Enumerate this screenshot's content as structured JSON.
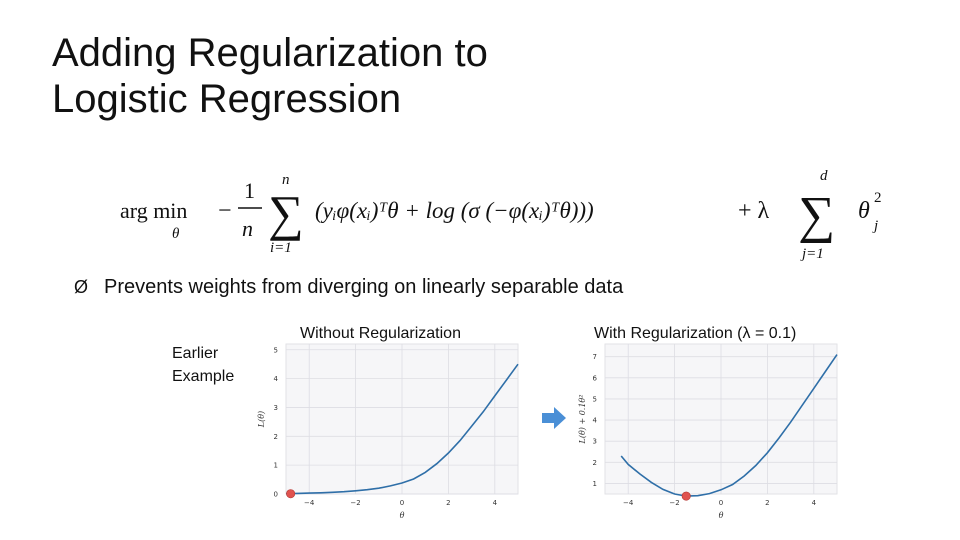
{
  "slide": {
    "title_line1": "Adding Regularization to",
    "title_line2": "Logistic Regression",
    "bullet_symbol": "Ø",
    "bullet_text": "Prevents weights from diverging on linearly separable data",
    "earlier_line1": "Earlier",
    "earlier_line2": "Example",
    "formula": {
      "argmin": "arg min",
      "argmin_sub": "θ",
      "minus": "−",
      "frac_num": "1",
      "frac_den": "n",
      "sum1_top": "n",
      "sum1_bottom": "i=1",
      "body": "(yᵢφ(xᵢ)ᵀθ + log (σ (−φ(xᵢ)ᵀθ)))",
      "plus_lambda": "+ λ",
      "sum2_top": "d",
      "sum2_bottom": "j=1",
      "theta": "θ",
      "theta_sup": "2",
      "theta_sub": "j"
    },
    "accent_color": "#4a8fd6",
    "curve_color": "#2f6fa8",
    "marker_color": "#e0534f"
  },
  "chart_data": [
    {
      "type": "line",
      "title": "Without Regularization",
      "xlabel": "θ",
      "ylabel": "L(θ)",
      "xlim": [
        -5,
        5
      ],
      "ylim": [
        0,
        5.2
      ],
      "xticks": [
        -4,
        -2,
        0,
        2,
        4
      ],
      "yticks": [
        0,
        1,
        2,
        3,
        4,
        5
      ],
      "grid": true,
      "x": [
        -5,
        -4.5,
        -4,
        -3.5,
        -3,
        -2.5,
        -2,
        -1.5,
        -1,
        -0.5,
        0,
        0.5,
        1,
        1.5,
        2,
        2.5,
        3,
        3.5,
        4,
        4.5,
        5
      ],
      "values": [
        0.01,
        0.02,
        0.03,
        0.04,
        0.06,
        0.08,
        0.11,
        0.15,
        0.2,
        0.28,
        0.38,
        0.52,
        0.75,
        1.05,
        1.42,
        1.85,
        2.35,
        2.85,
        3.4,
        3.95,
        4.5
      ],
      "marker": {
        "x": -4.8,
        "y": 0.01
      }
    },
    {
      "type": "line",
      "title": "With Regularization (λ = 0.1)",
      "xlabel": "θ",
      "ylabel": "L(θ) + 0.1θ²",
      "xlim": [
        -5,
        5
      ],
      "ylim": [
        0.5,
        7.6
      ],
      "xticks": [
        -4,
        -2,
        0,
        2,
        4
      ],
      "yticks": [
        1,
        2,
        3,
        4,
        5,
        6,
        7
      ],
      "grid": true,
      "x": [
        -4.3,
        -4,
        -3.5,
        -3,
        -2.5,
        -2,
        -1.5,
        -1,
        -0.5,
        0,
        0.5,
        1,
        1.5,
        2,
        2.5,
        3,
        3.5,
        4,
        4.5,
        5
      ],
      "values": [
        2.3,
        1.9,
        1.45,
        1.05,
        0.72,
        0.5,
        0.4,
        0.42,
        0.52,
        0.7,
        0.95,
        1.35,
        1.85,
        2.45,
        3.15,
        3.9,
        4.7,
        5.5,
        6.3,
        7.1
      ],
      "marker": {
        "x": -1.5,
        "y": 0.4
      }
    }
  ]
}
